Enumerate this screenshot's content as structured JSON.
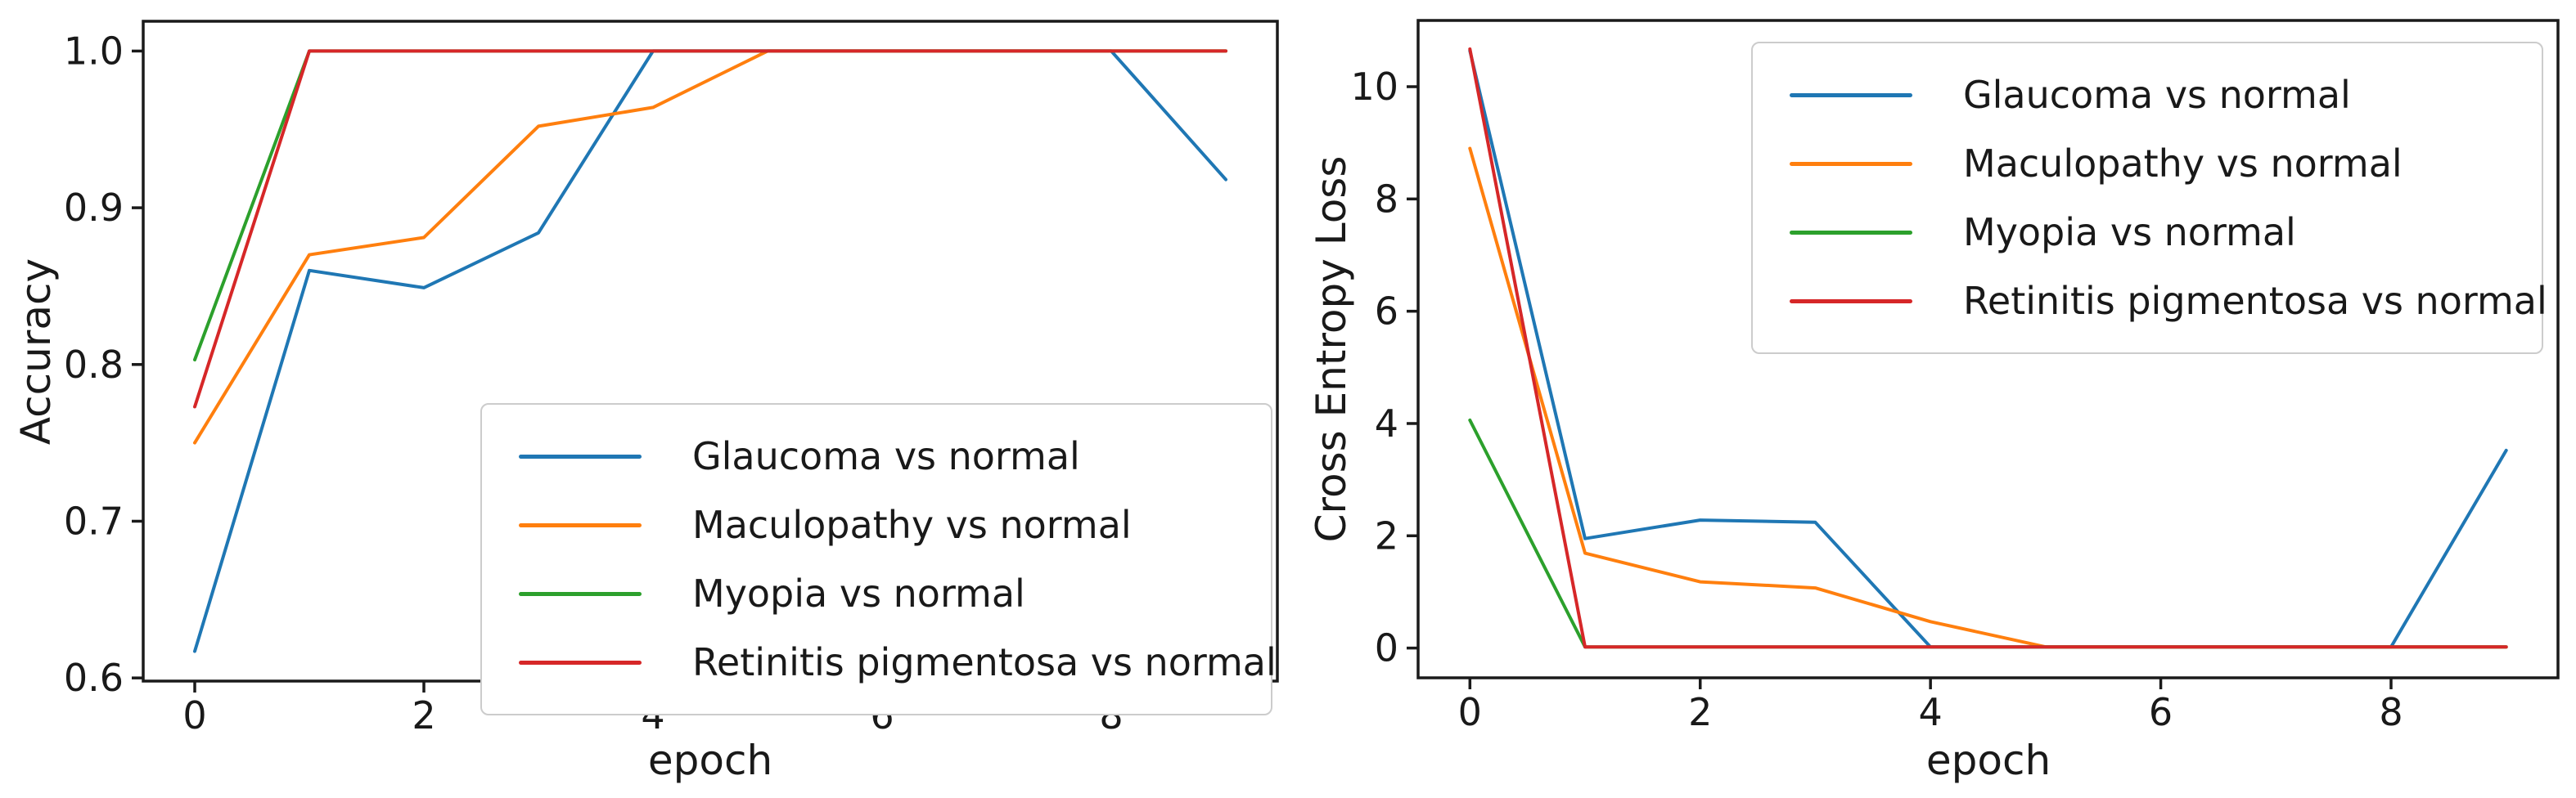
{
  "figure": {
    "background": "#ffffff",
    "description": "Two side-by-side line charts showing training accuracy and cross entropy loss per epoch for four binary eye-disease classifiers"
  },
  "colors": {
    "glaucoma": "#1f77b4",
    "maculopathy": "#ff7f0e",
    "myopia": "#2ca02c",
    "retinitis": "#d62728",
    "spine": "#1a1a1a",
    "legend_border": "#cccccc"
  },
  "chart_data": [
    {
      "type": "line",
      "title": "",
      "xlabel": "epoch",
      "ylabel": "Accuracy",
      "x": [
        0,
        1,
        2,
        3,
        4,
        5,
        6,
        7,
        8,
        9
      ],
      "xticks": [
        0,
        2,
        4,
        6,
        8
      ],
      "xticklabels": [
        "0",
        "2",
        "4",
        "6",
        "8"
      ],
      "yticks": [
        0.6,
        0.7,
        0.8,
        0.9,
        1.0
      ],
      "yticklabels": [
        "0.6",
        "0.7",
        "0.8",
        "0.9",
        "1.0"
      ],
      "xlim": [
        -0.45,
        9.45
      ],
      "ylim": [
        0.598,
        1.019
      ],
      "grid": false,
      "legend_position": "lower right inside",
      "series": [
        {
          "name": "Glaucoma vs normal",
          "color": "#1f77b4",
          "values": [
            0.617,
            0.86,
            0.849,
            0.884,
            1.0,
            1.0,
            1.0,
            1.0,
            1.0,
            0.918
          ]
        },
        {
          "name": "Maculopathy vs normal",
          "color": "#ff7f0e",
          "values": [
            0.75,
            0.87,
            0.881,
            0.952,
            0.964,
            1.0,
            1.0,
            1.0,
            1.0,
            1.0
          ]
        },
        {
          "name": "Myopia vs normal",
          "color": "#2ca02c",
          "values": [
            0.803,
            1.0,
            1.0,
            1.0,
            1.0,
            1.0,
            1.0,
            1.0,
            1.0,
            1.0
          ]
        },
        {
          "name": "Retinitis pigmentosa vs normal",
          "color": "#d62728",
          "values": [
            0.773,
            1.0,
            1.0,
            1.0,
            1.0,
            1.0,
            1.0,
            1.0,
            1.0,
            1.0
          ]
        }
      ]
    },
    {
      "type": "line",
      "title": "",
      "xlabel": "epoch",
      "ylabel": "Cross Entropy Loss",
      "x": [
        0,
        1,
        2,
        3,
        4,
        5,
        6,
        7,
        8,
        9
      ],
      "xticks": [
        0,
        2,
        4,
        6,
        8
      ],
      "xticklabels": [
        "0",
        "2",
        "4",
        "6",
        "8"
      ],
      "yticks": [
        0,
        2,
        4,
        6,
        8,
        10
      ],
      "yticklabels": [
        "0",
        "2",
        "4",
        "6",
        "8",
        "10"
      ],
      "xlim": [
        -0.45,
        9.45
      ],
      "ylim": [
        -0.53,
        11.18
      ],
      "grid": false,
      "legend_position": "upper right inside",
      "series": [
        {
          "name": "Glaucoma vs normal",
          "color": "#1f77b4",
          "values": [
            10.64,
            1.95,
            2.28,
            2.24,
            0.02,
            0.02,
            0.02,
            0.02,
            0.02,
            3.52
          ]
        },
        {
          "name": "Maculopathy vs normal",
          "color": "#ff7f0e",
          "values": [
            8.9,
            1.69,
            1.18,
            1.07,
            0.47,
            0.02,
            0.02,
            0.02,
            0.02,
            0.02
          ]
        },
        {
          "name": "Myopia vs normal",
          "color": "#2ca02c",
          "values": [
            4.06,
            0.02,
            0.02,
            0.02,
            0.02,
            0.02,
            0.02,
            0.02,
            0.02,
            0.02
          ]
        },
        {
          "name": "Retinitis pigmentosa vs normal",
          "color": "#d62728",
          "values": [
            10.67,
            0.02,
            0.02,
            0.02,
            0.02,
            0.02,
            0.02,
            0.02,
            0.02,
            0.02
          ]
        }
      ]
    }
  ]
}
